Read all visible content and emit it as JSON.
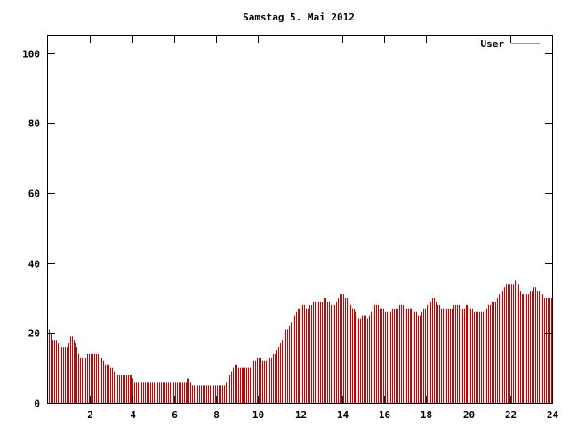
{
  "chart_data": {
    "type": "bar",
    "title": "Samstag 5. Mai 2012",
    "xlabel": "",
    "ylabel": "",
    "xlim": [
      0,
      24
    ],
    "ylim": [
      0,
      105
    ],
    "x_ticks": [
      2,
      4,
      6,
      8,
      10,
      12,
      14,
      16,
      18,
      20,
      22,
      24
    ],
    "x_tick_labels": [
      "2",
      "4",
      "6",
      "8",
      "10",
      "12",
      "14",
      "16",
      "18",
      "20",
      "22",
      "24"
    ],
    "y_ticks": [
      0,
      20,
      40,
      60,
      80,
      100
    ],
    "y_tick_labels": [
      "0",
      "20",
      "40",
      "60",
      "80",
      "100"
    ],
    "grid": false,
    "legend_position": "top-right",
    "series": [
      {
        "name": "User",
        "color": "#cc0000",
        "keypoints": [
          [
            0.05,
            21
          ],
          [
            0.2,
            18
          ],
          [
            0.35,
            18
          ],
          [
            0.5,
            17
          ],
          [
            0.7,
            16
          ],
          [
            0.9,
            16
          ],
          [
            1.05,
            19
          ],
          [
            1.2,
            18
          ],
          [
            1.35,
            16
          ],
          [
            1.55,
            13
          ],
          [
            1.8,
            13
          ],
          [
            1.9,
            14
          ],
          [
            2.4,
            14
          ],
          [
            2.6,
            12
          ],
          [
            2.8,
            11
          ],
          [
            3.0,
            10
          ],
          [
            3.2,
            8
          ],
          [
            4.0,
            8
          ],
          [
            4.15,
            6
          ],
          [
            5.0,
            6
          ],
          [
            5.2,
            6
          ],
          [
            6.5,
            6
          ],
          [
            6.7,
            7
          ],
          [
            6.8,
            6
          ],
          [
            6.9,
            5
          ],
          [
            8.4,
            5
          ],
          [
            8.55,
            7
          ],
          [
            8.7,
            9
          ],
          [
            8.85,
            11
          ],
          [
            9.1,
            10
          ],
          [
            9.6,
            10
          ],
          [
            9.8,
            12
          ],
          [
            10.0,
            13
          ],
          [
            10.3,
            12
          ],
          [
            10.5,
            13
          ],
          [
            10.8,
            14
          ],
          [
            11.0,
            16
          ],
          [
            11.2,
            20
          ],
          [
            11.45,
            22
          ],
          [
            11.7,
            25
          ],
          [
            11.9,
            27
          ],
          [
            12.1,
            28
          ],
          [
            12.4,
            27
          ],
          [
            12.6,
            29
          ],
          [
            13.0,
            29
          ],
          [
            13.2,
            30
          ],
          [
            13.5,
            28
          ],
          [
            13.75,
            29
          ],
          [
            13.9,
            31
          ],
          [
            14.2,
            30
          ],
          [
            14.5,
            27
          ],
          [
            14.75,
            24
          ],
          [
            15.0,
            25
          ],
          [
            15.25,
            24
          ],
          [
            15.5,
            28
          ],
          [
            15.65,
            28
          ],
          [
            15.8,
            27
          ],
          [
            16.2,
            26
          ],
          [
            16.5,
            27
          ],
          [
            16.8,
            28
          ],
          [
            17.1,
            27
          ],
          [
            17.5,
            26
          ],
          [
            17.7,
            25
          ],
          [
            17.9,
            27
          ],
          [
            18.15,
            29
          ],
          [
            18.3,
            30
          ],
          [
            18.6,
            28
          ],
          [
            18.8,
            27
          ],
          [
            19.15,
            27
          ],
          [
            19.4,
            28
          ],
          [
            19.7,
            27
          ],
          [
            20.0,
            28
          ],
          [
            20.3,
            26
          ],
          [
            20.7,
            26
          ],
          [
            21.0,
            28
          ],
          [
            21.2,
            29
          ],
          [
            21.4,
            30
          ],
          [
            21.6,
            32
          ],
          [
            21.8,
            34
          ],
          [
            22.0,
            34
          ],
          [
            22.3,
            35
          ],
          [
            22.5,
            31
          ],
          [
            22.8,
            31
          ],
          [
            23.0,
            32
          ],
          [
            23.2,
            33
          ],
          [
            23.5,
            31
          ],
          [
            23.7,
            30
          ],
          [
            23.95,
            30
          ]
        ]
      }
    ]
  }
}
